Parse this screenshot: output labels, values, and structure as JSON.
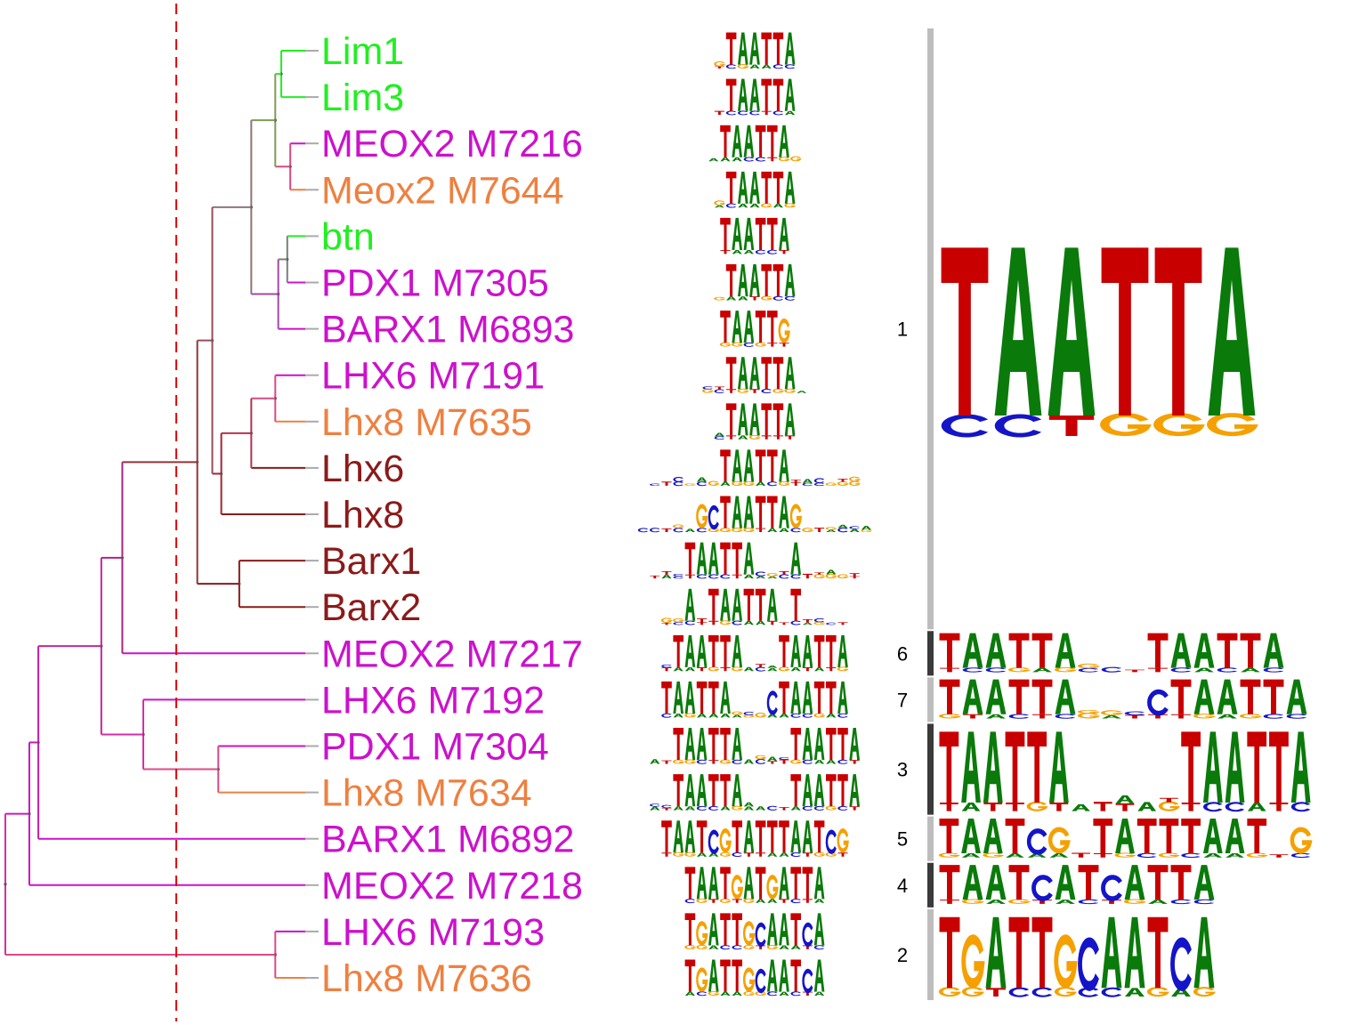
{
  "colors": {
    "A": "#0a7a0a",
    "C": "#1414c8",
    "G": "#f5a000",
    "T": "#c80000",
    "cutoff": "#e00000",
    "cluster_bar_light": "#bdbdbd",
    "cluster_bar_dark": "#3a3a3a",
    "dot": "#7a7a7a"
  },
  "leaves": [
    {
      "label": "Lim1",
      "color": "#22ee22",
      "motif": "_TAATTA"
    },
    {
      "label": "Lim3",
      "color": "#22ee22",
      "motif": "_TAATTA"
    },
    {
      "label": "MEOX2 M7216",
      "color": "#cc11cc",
      "motif": "_TAATTA_"
    },
    {
      "label": "Meox2 M7644",
      "color": "#ee8040",
      "motif": "_TAATTA"
    },
    {
      "label": "btn",
      "color": "#22ee22",
      "motif": "TAATTA"
    },
    {
      "label": "PDX1 M7305",
      "color": "#cc11cc",
      "motif": "_TAATTA"
    },
    {
      "label": "BARX1 M6893",
      "color": "#cc11cc",
      "motif": "TAATTG"
    },
    {
      "label": "LHX6 M7191",
      "color": "#cc11cc",
      "motif": "__TAATTA_"
    },
    {
      "label": "Lhx8 M7635",
      "color": "#ee8040",
      "motif": "_TAATTA"
    },
    {
      "label": "Lhx6",
      "color": "#8b1a1a",
      "motif": "______TAATTA______"
    },
    {
      "label": "Lhx8",
      "color": "#8b1a1a",
      "motif": "_____GCTAATTAG______"
    },
    {
      "label": "Barx1",
      "color": "#8b1a1a",
      "motif": "___TAATTA___A_____"
    },
    {
      "label": "Barx2",
      "color": "#8b1a1a",
      "motif": "__A_TAATTA_T____"
    },
    {
      "label": "MEOX2 M7217",
      "color": "#cc11cc",
      "motif": "_TAATTA___TAATTA"
    },
    {
      "label": "LHX6 M7192",
      "color": "#cc11cc",
      "motif": "TAATTA___CTAATTA"
    },
    {
      "label": "PDX1 M7304",
      "color": "#cc11cc",
      "motif": "__TAATTA____TAATTA"
    },
    {
      "label": "Lhx8 M7634",
      "color": "#ee8040",
      "motif": "__TAATTA____TAATTA"
    },
    {
      "label": "BARX1 M6892",
      "color": "#cc11cc",
      "motif": "TAATCGTATTTAATCG"
    },
    {
      "label": "MEOX2 M7218",
      "color": "#cc11cc",
      "motif": "TAATGATGATTA"
    },
    {
      "label": "LHX6 M7193",
      "color": "#cc11cc",
      "motif": "TGATTGCAATCA"
    },
    {
      "label": "Lhx8 M7636",
      "color": "#ee8040",
      "motif": "TGATTGCAATCA"
    }
  ],
  "clusters": [
    {
      "number": "1",
      "first_leaf": 0,
      "last_leaf": 12,
      "shade": "light",
      "consensus": "TAATTA"
    },
    {
      "number": "6",
      "first_leaf": 13,
      "last_leaf": 13,
      "shade": "dark",
      "consensus": "TAATTA___TAATTA"
    },
    {
      "number": "7",
      "first_leaf": 14,
      "last_leaf": 14,
      "shade": "light",
      "consensus": "TAATTA___CTAATTA"
    },
    {
      "number": "3",
      "first_leaf": 15,
      "last_leaf": 16,
      "shade": "dark",
      "consensus": "TAATTA_____TAATTA"
    },
    {
      "number": "5",
      "first_leaf": 17,
      "last_leaf": 17,
      "shade": "light",
      "consensus": "TAATCG_TATTTAAT_G"
    },
    {
      "number": "4",
      "first_leaf": 18,
      "last_leaf": 18,
      "shade": "dark",
      "consensus": "TAATCATCATTA"
    },
    {
      "number": "2",
      "first_leaf": 19,
      "last_leaf": 20,
      "shade": "light",
      "consensus": "TGATTGCAATCA"
    }
  ],
  "tree": {
    "nodes": [
      {
        "children": [
          0,
          1
        ],
        "depth": 0.92
      },
      {
        "children": [
          2,
          3
        ],
        "depth": 0.95
      },
      {
        "children": [
          21,
          22
        ],
        "depth": 0.9
      },
      {
        "children": [
          4,
          5
        ],
        "depth": 0.94
      },
      {
        "children": [
          24,
          6
        ],
        "depth": 0.91
      },
      {
        "children": [
          23,
          25
        ],
        "depth": 0.82
      },
      {
        "children": [
          7,
          8
        ],
        "depth": 0.9
      },
      {
        "children": [
          27,
          9
        ],
        "depth": 0.82
      },
      {
        "children": [
          28,
          10
        ],
        "depth": 0.72
      },
      {
        "children": [
          26,
          29
        ],
        "depth": 0.69
      },
      {
        "children": [
          11,
          12
        ],
        "depth": 0.78
      },
      {
        "children": [
          30,
          31
        ],
        "depth": 0.64
      },
      {
        "children": [
          32,
          13
        ],
        "depth": 0.39
      },
      {
        "children": [
          15,
          16
        ],
        "depth": 0.71
      },
      {
        "children": [
          14,
          34
        ],
        "depth": 0.46
      },
      {
        "children": [
          33,
          35
        ],
        "depth": 0.32
      },
      {
        "children": [
          36,
          17
        ],
        "depth": 0.11
      },
      {
        "children": [
          37,
          18
        ],
        "depth": 0.08
      },
      {
        "children": [
          19,
          20
        ],
        "depth": 0.9
      },
      {
        "children": [
          38,
          39
        ],
        "depth": 0.0
      }
    ],
    "cutoff_depth": 0.57
  }
}
